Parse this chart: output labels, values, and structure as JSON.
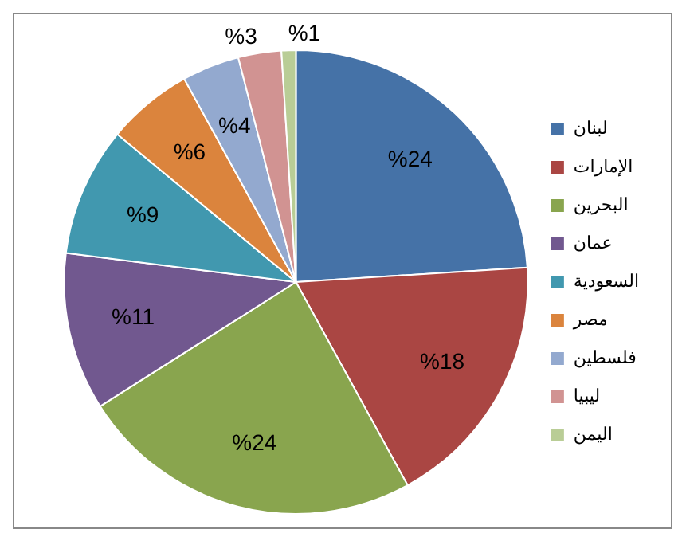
{
  "chart_data": {
    "type": "pie",
    "categories": [
      "لبنان",
      "الإمارات",
      "البحرين",
      "عمان",
      "السعودية",
      "مصر",
      "فلسطين",
      "ليبيا",
      "اليمن"
    ],
    "values": [
      24,
      18,
      24,
      11,
      9,
      6,
      4,
      3,
      1
    ],
    "value_labels": [
      "%24",
      "%18",
      "%24",
      "%11",
      "%9",
      "%6",
      "%4",
      "%3",
      "%1"
    ],
    "colors": [
      "#4572a7",
      "#aa4643",
      "#89a54e",
      "#71588f",
      "#4198af",
      "#db843d",
      "#93a9cf",
      "#d19392",
      "#b9cd96"
    ],
    "legend": "right"
  }
}
